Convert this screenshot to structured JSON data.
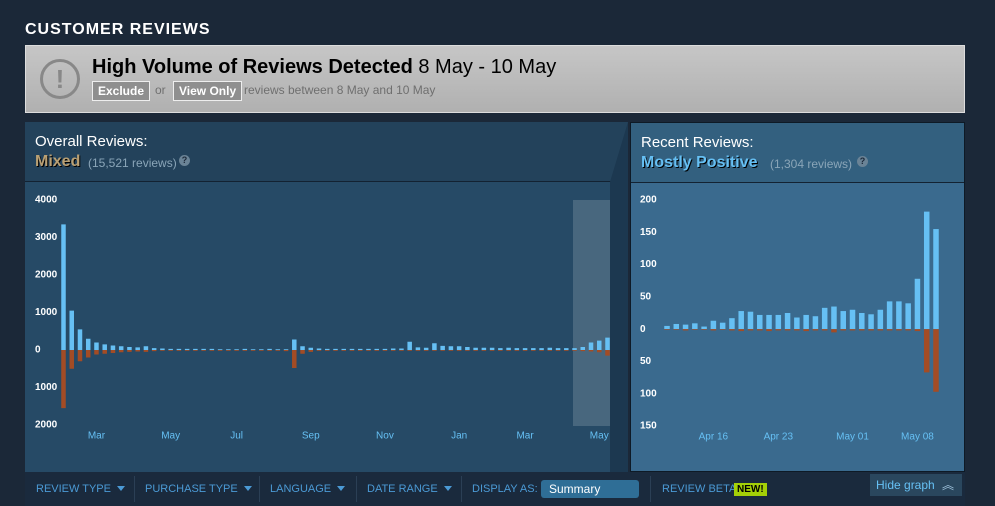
{
  "header": {
    "title": "CUSTOMER REVIEWS"
  },
  "banner": {
    "title": "High Volume of Reviews Detected",
    "date_range": "8 May - 10 May",
    "exclude": "Exclude",
    "or": "or",
    "view_only": "View Only",
    "note": "reviews between 8 May and 10 May"
  },
  "overall": {
    "label": "Overall Reviews:",
    "rating": "Mixed",
    "count": "(15,521 reviews)",
    "help": "?",
    "chart": {
      "type": "bar",
      "categories": [
        null,
        null,
        null,
        null,
        "Mar",
        null,
        null,
        null,
        null,
        null,
        null,
        null,
        null,
        "May",
        null,
        null,
        null,
        null,
        null,
        null,
        null,
        "Jul",
        null,
        null,
        null,
        null,
        null,
        null,
        null,
        null,
        "Sep",
        null,
        null,
        null,
        null,
        null,
        null,
        null,
        null,
        "Nov",
        null,
        null,
        null,
        null,
        null,
        null,
        null,
        null,
        "Jan",
        null,
        null,
        null,
        null,
        null,
        null,
        null,
        "Mar",
        null,
        null,
        null,
        null,
        null,
        null,
        null,
        null,
        "May",
        null
      ],
      "series": [
        {
          "color": "#66c0f4",
          "values": [
            3350,
            1050,
            550,
            300,
            200,
            150,
            120,
            100,
            80,
            70,
            100,
            50,
            40,
            30,
            30,
            30,
            30,
            30,
            30,
            20,
            20,
            20,
            30,
            20,
            20,
            30,
            20,
            20,
            280,
            100,
            60,
            40,
            30,
            30,
            30,
            30,
            30,
            30,
            30,
            30,
            40,
            40,
            220,
            70,
            60,
            180,
            110,
            100,
            100,
            80,
            60,
            60,
            60,
            50,
            60,
            50,
            50,
            50,
            50,
            60,
            50,
            50,
            50,
            80,
            200,
            250,
            330
          ]
        },
        {
          "color": "#a34c25",
          "values": [
            -1550,
            -500,
            -300,
            -200,
            -120,
            -100,
            -80,
            -60,
            -50,
            -40,
            -50,
            -30,
            -20,
            -20,
            -20,
            -20,
            -20,
            -20,
            -20,
            -20,
            -20,
            -20,
            -20,
            -20,
            -20,
            -20,
            -20,
            -30,
            -480,
            -100,
            -50,
            -20,
            -20,
            -20,
            -20,
            -20,
            -20,
            -20,
            -20,
            -20,
            -20,
            -20,
            -20,
            -20,
            -20,
            -20,
            -20,
            -20,
            -20,
            -20,
            -20,
            -20,
            -20,
            -20,
            -20,
            -20,
            -20,
            -20,
            -20,
            -20,
            -20,
            -20,
            -20,
            -30,
            -40,
            -60,
            -150
          ]
        }
      ],
      "ylim": [
        -2000,
        4000
      ],
      "yticks": [
        4000,
        3000,
        2000,
        1000,
        0,
        {
          "value": -1000,
          "label": "1000"
        },
        {
          "value": -2000,
          "label": "2000"
        }
      ]
    }
  },
  "recent": {
    "label": "Recent Reviews:",
    "rating": "Mostly Positive",
    "count": "(1,304 reviews)",
    "help": "?",
    "chart": {
      "type": "bar",
      "categories": [
        null,
        null,
        null,
        null,
        null,
        "Apr 16",
        null,
        null,
        null,
        null,
        null,
        null,
        "Apr 23",
        null,
        null,
        null,
        null,
        null,
        null,
        null,
        "May 01",
        null,
        null,
        null,
        null,
        null,
        null,
        "May 08",
        null,
        null
      ],
      "series": [
        {
          "color": "#66c0f4",
          "values": [
            5,
            8,
            7,
            9,
            4,
            13,
            10,
            17,
            28,
            27,
            22,
            22,
            22,
            25,
            18,
            22,
            20,
            33,
            35,
            28,
            30,
            25,
            23,
            30,
            43,
            43,
            40,
            78,
            182,
            155
          ]
        },
        {
          "color": "#a34c25",
          "values": [
            -1,
            -1,
            -2,
            -1,
            -1,
            -2,
            -1,
            -2,
            -3,
            -2,
            -2,
            -3,
            -2,
            -2,
            -2,
            -3,
            -2,
            -2,
            -5,
            -2,
            -2,
            -2,
            -2,
            -2,
            -2,
            -2,
            -2,
            -3,
            -67,
            -97
          ]
        }
      ],
      "ylim": [
        -150,
        200
      ],
      "yticks": [
        200,
        150,
        100,
        50,
        0,
        {
          "value": -50,
          "label": "50"
        },
        {
          "value": -100,
          "label": "100"
        },
        {
          "value": -150,
          "label": "150"
        }
      ]
    }
  },
  "filters": {
    "items": [
      "REVIEW TYPE",
      "PURCHASE TYPE",
      "LANGUAGE",
      "DATE RANGE"
    ],
    "display_as": "DISPLAY AS:",
    "display_value": "Summary",
    "review_beta": "REVIEW BETA",
    "new_badge": "NEW!",
    "hide_graph": "Hide graph"
  }
}
